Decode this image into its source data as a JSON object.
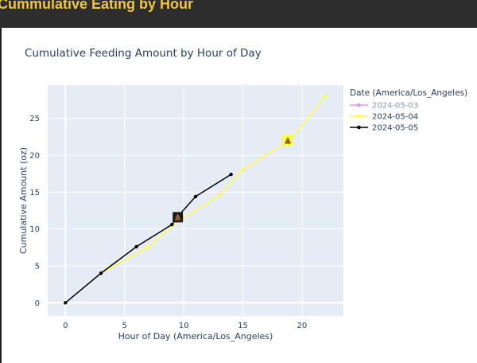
{
  "app": {
    "title": "Cummulative Eating by Hour"
  },
  "chart_data": {
    "type": "line",
    "title": "Cumulative Feeding Amount by Hour of Day",
    "xlabel": "Hour of Day (America/Los_Angeles)",
    "ylabel": "Cumulative Amount (oz)",
    "xlim": [
      -1.5,
      23.5
    ],
    "ylim": [
      -1.8,
      29.5
    ],
    "xticks": [
      0,
      5,
      10,
      15,
      20
    ],
    "yticks": [
      0,
      5,
      10,
      15,
      20,
      25
    ],
    "grid": true,
    "legend": {
      "title": "Date (America/Los_Angeles)",
      "placement": "right"
    },
    "series": [
      {
        "name": "2024-05-03",
        "color": "#e68ff0",
        "x": [],
        "y": []
      },
      {
        "name": "2024-05-04",
        "color": "#ffff44",
        "x": [
          3,
          7,
          9.5,
          13,
          15,
          19,
          22
        ],
        "y": [
          4,
          7.5,
          11,
          14.5,
          18,
          22,
          28
        ]
      },
      {
        "name": "2024-05-05",
        "color": "#000000",
        "x": [
          0,
          3,
          6,
          9,
          9.5,
          11,
          14
        ],
        "y": [
          0,
          4,
          7.6,
          10.6,
          11.7,
          14.4,
          17.4
        ]
      }
    ],
    "markers": [
      {
        "series": "2024-05-05",
        "x": 9.5,
        "y": 11.6,
        "icon": "poop-icon",
        "background": "#1a1a1a"
      },
      {
        "series": "2024-05-04",
        "x": 18.8,
        "y": 22,
        "icon": "poop-icon",
        "background": "#ffff44"
      }
    ]
  }
}
